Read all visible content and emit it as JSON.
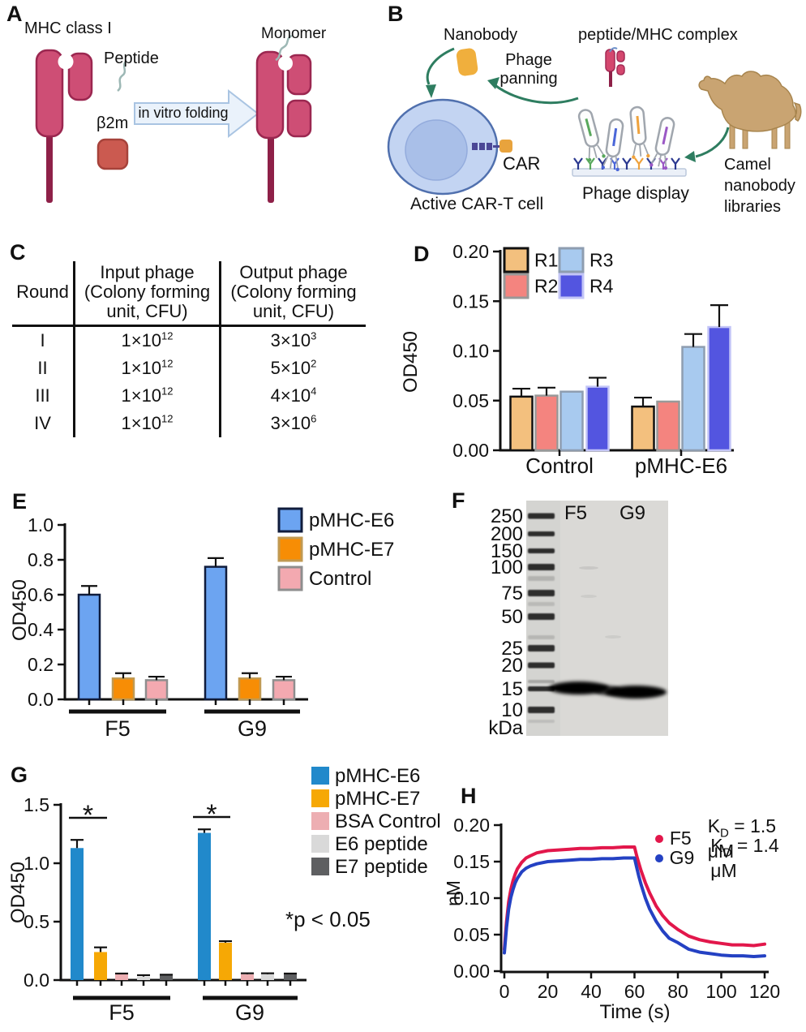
{
  "panels": {
    "a": {
      "label": "A",
      "title": "MHC class I",
      "peptide": "Peptide",
      "b2m": "β2m",
      "arrow": "in vitro folding",
      "monomer": "Monomer"
    },
    "b": {
      "label": "B",
      "nanobody": "Nanobody",
      "phage_panning_line1": "Phage",
      "phage_panning_line2": "panning",
      "pmhc_complex": "peptide/MHC complex",
      "car": "CAR",
      "active_cart": "Active CAR-T cell",
      "phage_display": "Phage display",
      "camel_line1": "Camel",
      "camel_line2": "nanobody",
      "camel_line3": "libraries"
    },
    "c": {
      "label": "C",
      "table": {
        "col1": "Round",
        "col2_line1": "Input phage",
        "col2_line2": "(Colony forming",
        "col2_line3": "unit, CFU)",
        "col3_line1": "Output phage",
        "col3_line2": "(Colony forming",
        "col3_line3": "unit, CFU)",
        "rows": [
          {
            "round": "I",
            "in_base": "1×10",
            "in_exp": "12",
            "out_base": "3×10",
            "out_exp": "3"
          },
          {
            "round": "II",
            "in_base": "1×10",
            "in_exp": "12",
            "out_base": "5×10",
            "out_exp": "2"
          },
          {
            "round": "III",
            "in_base": "1×10",
            "in_exp": "12",
            "out_base": "4×10",
            "out_exp": "4"
          },
          {
            "round": "IV",
            "in_base": "1×10",
            "in_exp": "12",
            "out_base": "3×10",
            "out_exp": "6"
          }
        ]
      }
    },
    "d": {
      "label": "D"
    },
    "e": {
      "label": "E"
    },
    "f": {
      "label": "F",
      "ladder": [
        "250",
        "200",
        "150",
        "100",
        "75",
        "50",
        "25",
        "20",
        "15",
        "10"
      ],
      "unit": "kDa",
      "lanes": [
        "F5",
        "G9"
      ]
    },
    "g": {
      "label": "G"
    },
    "h": {
      "label": "H"
    }
  },
  "chart_data": [
    {
      "id": "panel-D",
      "type": "bar",
      "ylabel": "OD450",
      "ylim": [
        0,
        0.2
      ],
      "yticks": [
        "0.00",
        "0.05",
        "0.10",
        "0.15",
        "0.20"
      ],
      "categories": [
        "Control",
        "pMHC-E6"
      ],
      "grid": false,
      "legend_position": "top-left-two-column",
      "series": [
        {
          "name": "R1",
          "color": "#F3C07E",
          "border": "#111111",
          "values": [
            0.054,
            0.044
          ],
          "errors": [
            0.008,
            0.009
          ]
        },
        {
          "name": "R2",
          "color": "#F4847F",
          "border": "#999999",
          "values": [
            0.055,
            0.049
          ],
          "errors": [
            0.008,
            null
          ]
        },
        {
          "name": "R3",
          "color": "#A8CAEF",
          "border": "#8E9DB0",
          "values": [
            0.059,
            0.104
          ],
          "errors": [
            null,
            0.013
          ]
        },
        {
          "name": "R4",
          "color": "#5355E0",
          "border": "#C3C5F7",
          "values": [
            0.064,
            0.124
          ],
          "errors": [
            0.009,
            0.022
          ]
        }
      ]
    },
    {
      "id": "panel-E",
      "type": "bar",
      "ylabel": "OD450",
      "ylim": [
        0,
        1.0
      ],
      "yticks": [
        "0.0",
        "0.2",
        "0.4",
        "0.6",
        "0.8",
        "1.0"
      ],
      "categories": [
        "F5",
        "G9"
      ],
      "grid": false,
      "legend_position": "top-right",
      "series": [
        {
          "name": "pMHC-E6",
          "color": "#6CA4F1",
          "border": "#101C3C",
          "values": [
            0.6,
            0.76
          ],
          "errors": [
            0.05,
            0.05
          ]
        },
        {
          "name": "pMHC-E7",
          "color": "#F78D05",
          "border": "#C19A52",
          "values": [
            0.12,
            0.12
          ],
          "errors": [
            0.03,
            0.03
          ]
        },
        {
          "name": "Control",
          "color": "#F3A9B0",
          "border": "#8E8E8E",
          "values": [
            0.11,
            0.11
          ],
          "errors": [
            0.02,
            0.02
          ]
        }
      ]
    },
    {
      "id": "panel-G",
      "type": "bar",
      "ylabel": "OD450",
      "ylim": [
        0,
        1.5
      ],
      "yticks": [
        "0.0",
        "0.5",
        "1.0",
        "1.5"
      ],
      "categories": [
        "F5",
        "G9"
      ],
      "grid": false,
      "legend_position": "top-right",
      "annotation": "*p < 0.05",
      "significance": [
        {
          "category": "F5",
          "between": [
            "pMHC-E6",
            "pMHC-E7"
          ],
          "label": "*"
        },
        {
          "category": "G9",
          "between": [
            "pMHC-E6",
            "pMHC-E7"
          ],
          "label": "*"
        }
      ],
      "series": [
        {
          "name": "pMHC-E6",
          "color": "#2189CB",
          "values": [
            1.13,
            1.26
          ],
          "errors": [
            0.07,
            0.03
          ]
        },
        {
          "name": "pMHC-E7",
          "color": "#F6A805",
          "values": [
            0.24,
            0.32
          ],
          "errors": [
            0.04,
            0.013
          ]
        },
        {
          "name": "BSA Control",
          "color": "#EDAEB2",
          "values": [
            0.05,
            0.05
          ],
          "errors": [
            0.006,
            0.008
          ]
        },
        {
          "name": "E6 peptide",
          "color": "#D9D9D9",
          "values": [
            0.03,
            0.05
          ],
          "errors": [
            0.012,
            0.008
          ]
        },
        {
          "name": "E7 peptide",
          "color": "#5E5F61",
          "values": [
            0.04,
            0.05
          ],
          "errors": [
            0.006,
            0.006
          ]
        }
      ]
    },
    {
      "id": "panel-H",
      "type": "line",
      "xlabel": "Time (s)",
      "ylabel": "nM",
      "xlim": [
        0,
        120
      ],
      "ylim": [
        0,
        0.2
      ],
      "xticks": [
        "0",
        "20",
        "40",
        "60",
        "80",
        "100",
        "120"
      ],
      "yticks": [
        "0.00",
        "0.05",
        "0.10",
        "0.15",
        "0.20"
      ],
      "grid": false,
      "legend_position": "top-right",
      "series": [
        {
          "name": "F5",
          "kd_pre": "K",
          "kd_sub": "D",
          "kd_rest": "= 1.5 μM",
          "color": "#E2174B",
          "points": [
            [
              0,
              0.03
            ],
            [
              1,
              0.068
            ],
            [
              2,
              0.095
            ],
            [
              3,
              0.112
            ],
            [
              4,
              0.124
            ],
            [
              5,
              0.133
            ],
            [
              6,
              0.14
            ],
            [
              8,
              0.149
            ],
            [
              10,
              0.155
            ],
            [
              12,
              0.158
            ],
            [
              15,
              0.162
            ],
            [
              20,
              0.165
            ],
            [
              25,
              0.166
            ],
            [
              30,
              0.167
            ],
            [
              35,
              0.168
            ],
            [
              40,
              0.168
            ],
            [
              45,
              0.169
            ],
            [
              50,
              0.169
            ],
            [
              55,
              0.17
            ],
            [
              60,
              0.17
            ],
            [
              61,
              0.158
            ],
            [
              62,
              0.148
            ],
            [
              63,
              0.138
            ],
            [
              65,
              0.121
            ],
            [
              67,
              0.107
            ],
            [
              70,
              0.089
            ],
            [
              73,
              0.076
            ],
            [
              76,
              0.066
            ],
            [
              80,
              0.057
            ],
            [
              85,
              0.048
            ],
            [
              90,
              0.043
            ],
            [
              95,
              0.04
            ],
            [
              100,
              0.038
            ],
            [
              105,
              0.036
            ],
            [
              110,
              0.036
            ],
            [
              115,
              0.035
            ],
            [
              120,
              0.037
            ]
          ]
        },
        {
          "name": "G9",
          "kd_pre": "K",
          "kd_sub": "D",
          "kd_rest": "= 1.4 μM",
          "color": "#2441C3",
          "points": [
            [
              0,
              0.025
            ],
            [
              1,
              0.06
            ],
            [
              2,
              0.085
            ],
            [
              3,
              0.101
            ],
            [
              4,
              0.112
            ],
            [
              5,
              0.121
            ],
            [
              6,
              0.127
            ],
            [
              8,
              0.136
            ],
            [
              10,
              0.141
            ],
            [
              12,
              0.144
            ],
            [
              15,
              0.147
            ],
            [
              20,
              0.15
            ],
            [
              25,
              0.151
            ],
            [
              30,
              0.152
            ],
            [
              35,
              0.153
            ],
            [
              40,
              0.153
            ],
            [
              45,
              0.154
            ],
            [
              50,
              0.154
            ],
            [
              55,
              0.155
            ],
            [
              60,
              0.155
            ],
            [
              61,
              0.142
            ],
            [
              62,
              0.13
            ],
            [
              63,
              0.119
            ],
            [
              65,
              0.1
            ],
            [
              67,
              0.085
            ],
            [
              70,
              0.068
            ],
            [
              73,
              0.055
            ],
            [
              76,
              0.045
            ],
            [
              80,
              0.039
            ],
            [
              85,
              0.03
            ],
            [
              90,
              0.026
            ],
            [
              95,
              0.024
            ],
            [
              100,
              0.022
            ],
            [
              105,
              0.021
            ],
            [
              110,
              0.021
            ],
            [
              115,
              0.02
            ],
            [
              120,
              0.021
            ]
          ]
        }
      ]
    }
  ]
}
